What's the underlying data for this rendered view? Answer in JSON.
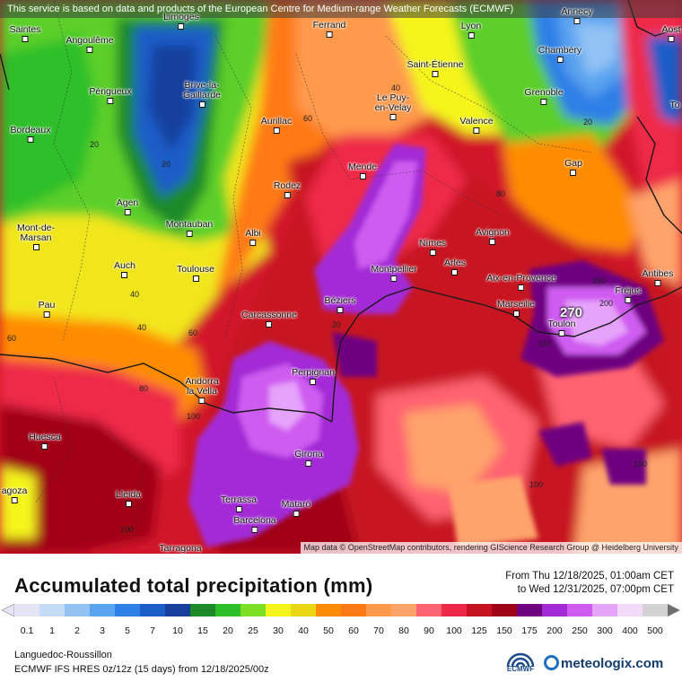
{
  "notice": "This service is based on data and products of the European Centre for Medium-range Weather Forecasts (ECMWF)",
  "attribution": "Map data © OpenStreetMap contributors, rendering GIScience Research Group @ Heidelberg University",
  "cities": [
    {
      "name": "Saintes"
    },
    {
      "name": "Angoulême"
    },
    {
      "name": "Limoges"
    },
    {
      "name": "Ferrand"
    },
    {
      "name": "Lyon"
    },
    {
      "name": "Annecy"
    },
    {
      "name": "Aost"
    },
    {
      "name": "Chambéry"
    },
    {
      "name": "Saint-Étienne"
    },
    {
      "name": "Périgueux"
    },
    {
      "name": "Brive-la-\nGaillarde"
    },
    {
      "name": "Grenoble"
    },
    {
      "name": "Bordeaux"
    },
    {
      "name": "Le Puy-\nen-Velay"
    },
    {
      "name": "Aurillac"
    },
    {
      "name": "Valence"
    },
    {
      "name": "To"
    },
    {
      "name": "Gap"
    },
    {
      "name": "Mende"
    },
    {
      "name": "Rodez"
    },
    {
      "name": "Agen"
    },
    {
      "name": "Montauban"
    },
    {
      "name": "Mont-de-\nMarsan"
    },
    {
      "name": "Albi"
    },
    {
      "name": "Nîmes"
    },
    {
      "name": "Avignon"
    },
    {
      "name": "Auch"
    },
    {
      "name": "Toulouse"
    },
    {
      "name": "Montpellier"
    },
    {
      "name": "Arles"
    },
    {
      "name": "Aix-en-Provence"
    },
    {
      "name": "Antibes"
    },
    {
      "name": "Fréjus"
    },
    {
      "name": "Pau"
    },
    {
      "name": "Béziers"
    },
    {
      "name": "Marseille"
    },
    {
      "name": "Carcassonne"
    },
    {
      "name": "Toulon"
    },
    {
      "name": "Perpignan"
    },
    {
      "name": "Andorra\nla Vella"
    },
    {
      "name": "Huesca"
    },
    {
      "name": "Girona"
    },
    {
      "name": "agoza"
    },
    {
      "name": "Lleida"
    },
    {
      "name": "Terrassa"
    },
    {
      "name": "Mataró"
    },
    {
      "name": "Barcelona"
    },
    {
      "name": "Tarragona"
    }
  ],
  "isolines": [
    "20",
    "20",
    "20",
    "40",
    "40",
    "40",
    "60",
    "60",
    "60",
    "80",
    "80",
    "100",
    "100",
    "100",
    "100",
    "150",
    "150",
    "200",
    "20"
  ],
  "max_label": "270",
  "title": "Accumulated total precipitation (mm)",
  "period": {
    "from": "From Thu 12/18/2025, 01:00am CET",
    "to": "to Wed 12/31/2025, 07:00pm CET"
  },
  "legend": {
    "labels": [
      "0.1",
      "1",
      "2",
      "3",
      "5",
      "7",
      "10",
      "15",
      "20",
      "25",
      "30",
      "40",
      "50",
      "60",
      "70",
      "80",
      "90",
      "100",
      "125",
      "150",
      "175",
      "200",
      "250",
      "300",
      "400",
      "500"
    ],
    "colors": [
      "#e4e4f4",
      "#c4dcf8",
      "#93c3f5",
      "#5aa3ef",
      "#2f7fe6",
      "#1c5dc8",
      "#163f9e",
      "#1d8a2a",
      "#2fbf2a",
      "#7de023",
      "#f5f51e",
      "#e8d712",
      "#ff8c00",
      "#ff7a17",
      "#ff9a4d",
      "#ffa36c",
      "#ff6270",
      "#ef2a48",
      "#c71222",
      "#a10019",
      "#6e0080",
      "#a32bd6",
      "#cf5cf0",
      "#e6a3fb",
      "#f3dcfb",
      "#d2d2d2"
    ]
  },
  "region": "Languedoc-Roussillon",
  "model": "ECMWF IFS HRES 0z/12z (15 days) from 12/18/2025/00z",
  "logo_text": "ECMWF",
  "brand": "meteologix.com"
}
